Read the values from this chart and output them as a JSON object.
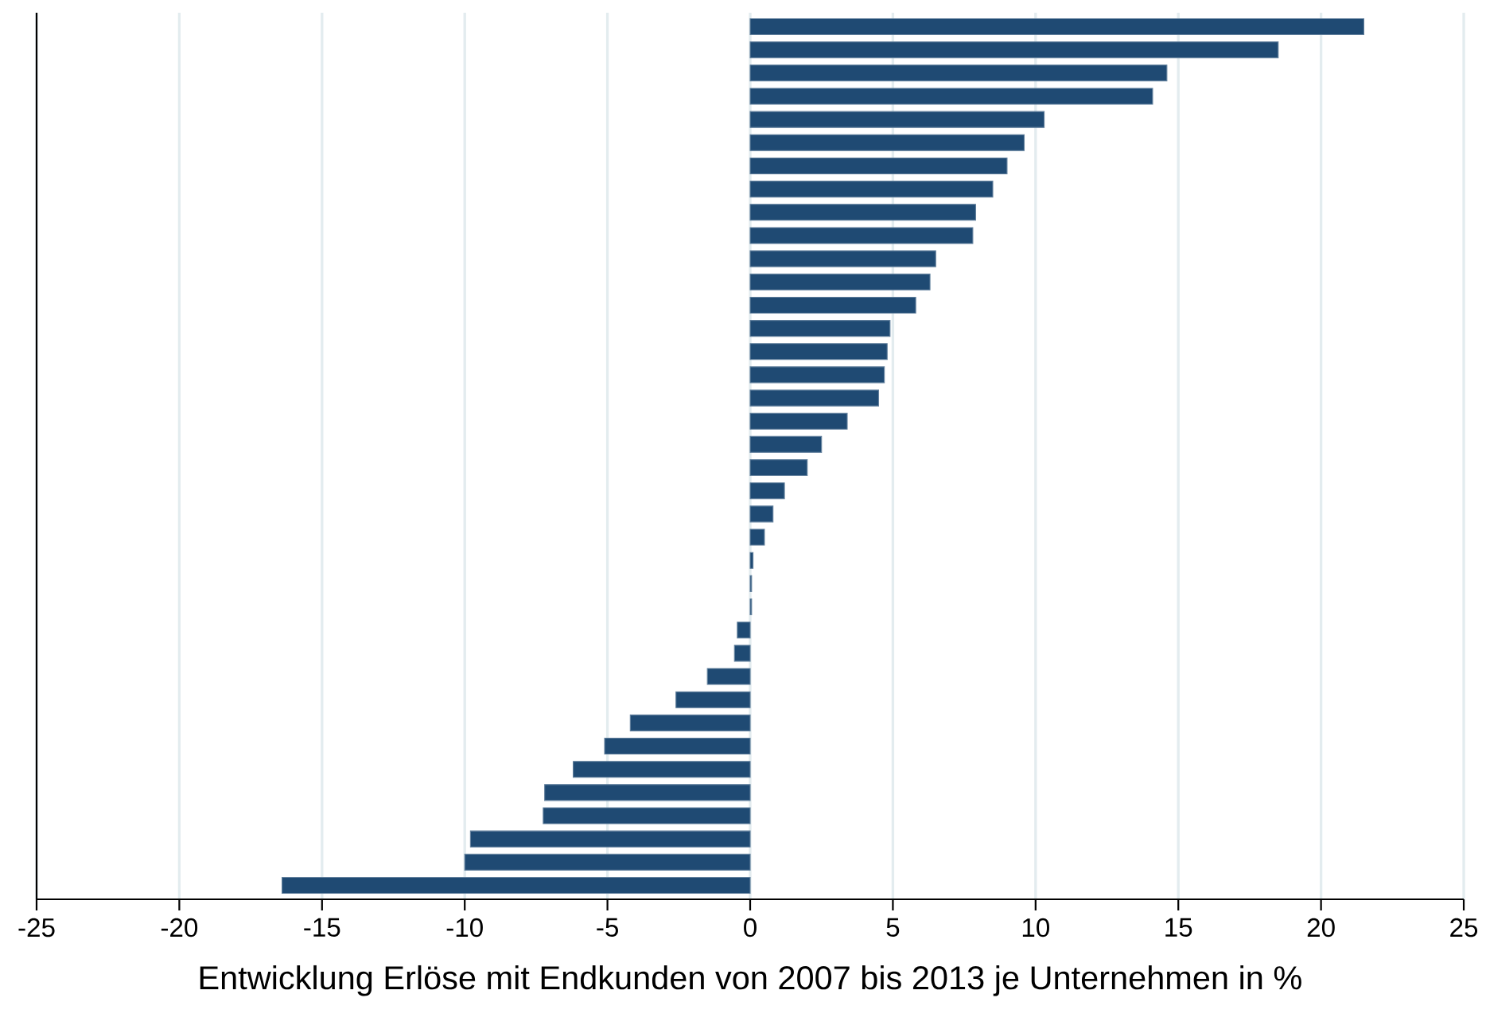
{
  "chart_data": {
    "type": "bar",
    "orientation": "horizontal",
    "xlabel": "Entwicklung Erlöse mit Endkunden von 2007 bis 2013 je Unternehmen in %",
    "categories": [
      null,
      null,
      null,
      null,
      null,
      null,
      null,
      null,
      null,
      null,
      null,
      null,
      null,
      null,
      null,
      null,
      null,
      null,
      null,
      null,
      null,
      null,
      null,
      null,
      null,
      null,
      null,
      null,
      null,
      null,
      null,
      null,
      null,
      null,
      null,
      null,
      null,
      null
    ],
    "values": [
      21.5,
      18.5,
      14.6,
      14.1,
      10.3,
      9.6,
      9.0,
      8.5,
      7.9,
      7.8,
      6.5,
      6.3,
      5.8,
      4.9,
      4.8,
      4.7,
      4.5,
      3.4,
      2.5,
      2.0,
      1.2,
      0.8,
      0.5,
      0.1,
      0.05,
      0.05,
      -0.45,
      -0.55,
      -1.5,
      -2.6,
      -4.2,
      -5.1,
      -6.2,
      -7.2,
      -7.25,
      -9.8,
      -10.0,
      -16.4
    ],
    "color": "#1f4a73",
    "xlim": [
      -25,
      25
    ],
    "xticks": [
      -25,
      -20,
      -15,
      -10,
      -5,
      0,
      5,
      10,
      15,
      20,
      25
    ],
    "grid": "x"
  }
}
